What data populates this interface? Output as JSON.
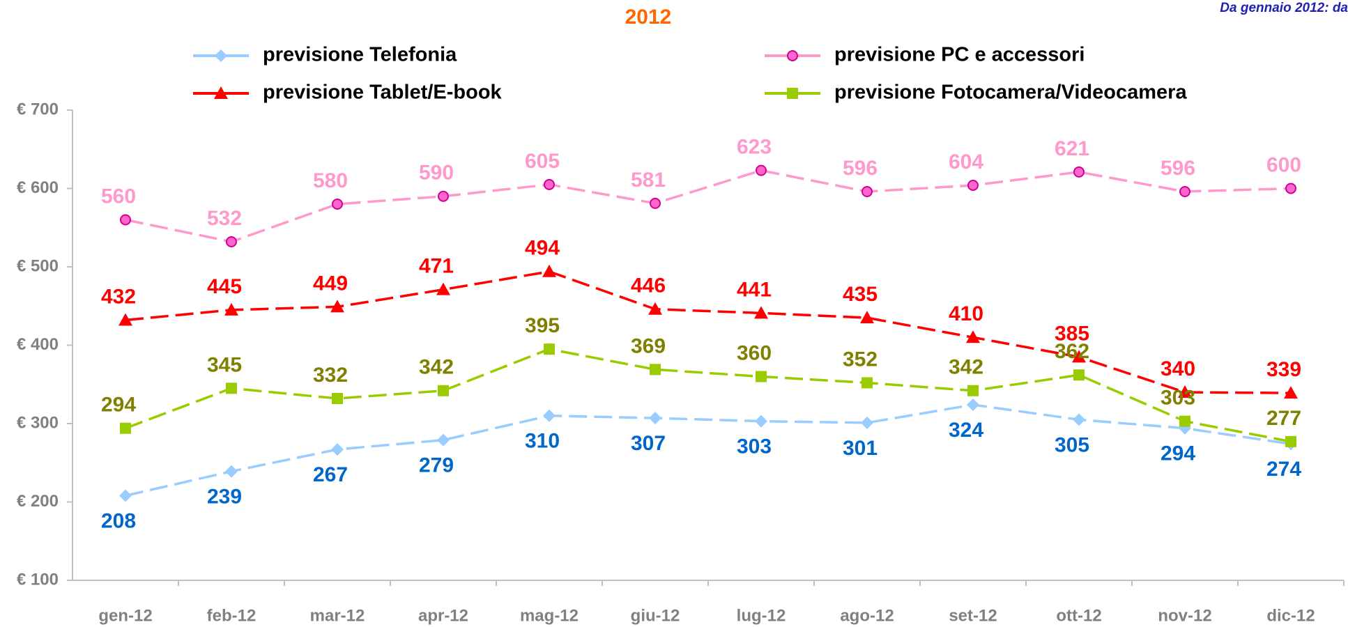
{
  "chart_data": {
    "type": "line",
    "title": "2012",
    "note": "Da gennaio 2012: da",
    "categories": [
      "gen-12",
      "feb-12",
      "mar-12",
      "apr-12",
      "mag-12",
      "giu-12",
      "lug-12",
      "ago-12",
      "set-12",
      "ott-12",
      "nov-12",
      "dic-12"
    ],
    "ylim": [
      100,
      700
    ],
    "yticks": [
      {
        "value": 100,
        "label": "€ 100"
      },
      {
        "value": 200,
        "label": "€ 200"
      },
      {
        "value": 300,
        "label": "€ 300"
      },
      {
        "value": 400,
        "label": "€ 400"
      },
      {
        "value": 500,
        "label": "€ 500"
      },
      {
        "value": 600,
        "label": "€ 600"
      },
      {
        "value": 700,
        "label": "€ 700"
      }
    ],
    "series": [
      {
        "name": "previsione Telefonia",
        "color": "#99ccff",
        "label_color": "#0066cc",
        "marker": "diamond",
        "values": [
          208,
          239,
          267,
          279,
          310,
          307,
          303,
          301,
          324,
          305,
          294,
          274
        ]
      },
      {
        "name": "previsione PC e accessori",
        "color": "#ff99cc",
        "label_color": "#ff99cc",
        "marker": "circle",
        "values": [
          560,
          532,
          580,
          590,
          605,
          581,
          623,
          596,
          604,
          621,
          596,
          600
        ]
      },
      {
        "name": "previsione Tablet/E-book",
        "color": "#ff0000",
        "label_color": "#ff0000",
        "marker": "triangle",
        "values": [
          432,
          445,
          449,
          471,
          494,
          446,
          441,
          435,
          410,
          385,
          340,
          339
        ]
      },
      {
        "name": "previsione Fotocamera/Videocamera",
        "color": "#99cc00",
        "label_color": "#808000",
        "marker": "square",
        "values": [
          294,
          345,
          332,
          342,
          395,
          369,
          360,
          352,
          342,
          362,
          303,
          277
        ]
      }
    ]
  }
}
